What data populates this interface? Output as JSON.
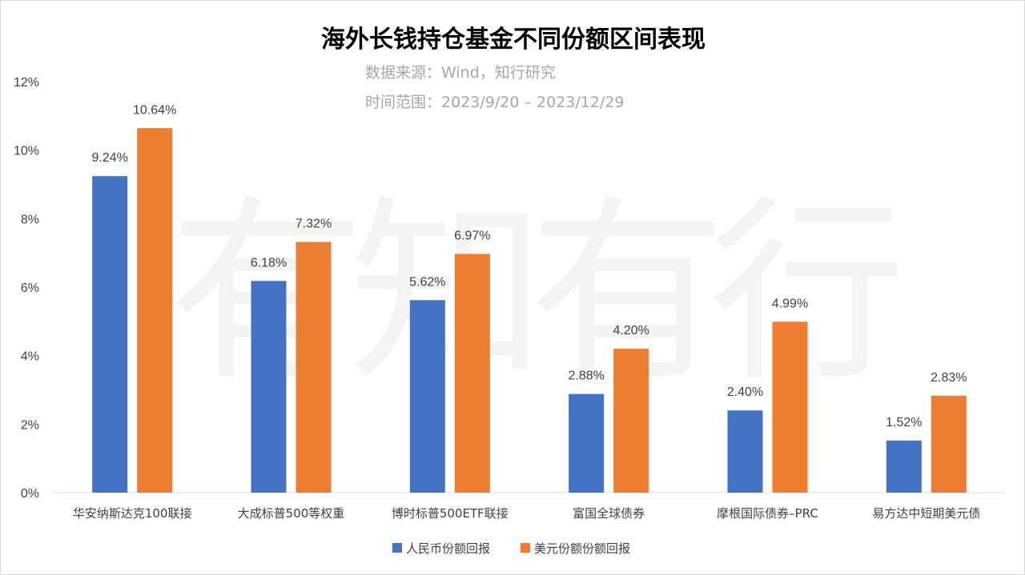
{
  "watermark": "有知有行",
  "chart_data": {
    "type": "bar",
    "title": "海外长钱持仓基金不同份额区间表现",
    "subtitle_lines": [
      "数据来源：Wind，知行研究",
      "时间范围：2023/9/20 – 2023/12/29"
    ],
    "categories": [
      "华安纳斯达克100联接",
      "大成标普500等权重",
      "博时标普500ETF联接",
      "富国全球债券",
      "摩根国际债券–PRC",
      "易方达中短期美元债"
    ],
    "series": [
      {
        "name": "人民币份额回报",
        "color": "#4472C4",
        "values": [
          9.24,
          6.18,
          5.62,
          2.88,
          2.4,
          1.52
        ]
      },
      {
        "name": "美元份额份额回报",
        "color": "#ED7D31",
        "values": [
          10.64,
          7.32,
          6.97,
          4.2,
          4.99,
          2.83
        ]
      }
    ],
    "value_labels": [
      [
        "9.24%",
        "6.18%",
        "5.62%",
        "2.88%",
        "2.40%",
        "1.52%"
      ],
      [
        "10.64%",
        "7.32%",
        "6.97%",
        "4.20%",
        "4.99%",
        "2.83%"
      ]
    ],
    "yticks": [
      "0%",
      "2%",
      "4%",
      "6%",
      "8%",
      "10%",
      "12%"
    ],
    "ylim": [
      0,
      12
    ],
    "grid": false,
    "legend_position": "bottom"
  }
}
